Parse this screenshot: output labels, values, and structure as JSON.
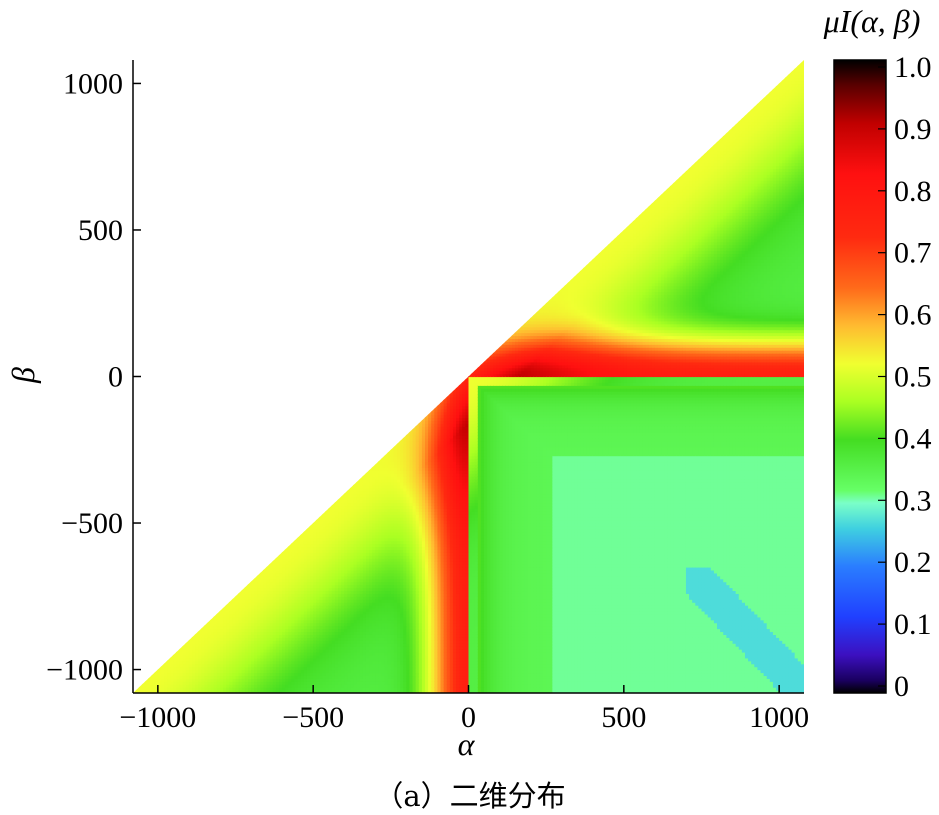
{
  "chart_data": {
    "type": "heatmap",
    "xlabel": "α",
    "ylabel": "β",
    "xlim": [
      -1080,
      1080
    ],
    "ylim": [
      -1080,
      1080
    ],
    "xticks": [
      -1000,
      -500,
      0,
      500,
      1000
    ],
    "yticks": [
      -1000,
      -500,
      0,
      500,
      1000
    ],
    "x_tick_labels": [
      "−1000",
      "−500",
      "0",
      "500",
      "1000"
    ],
    "y_tick_labels": [
      "−1000",
      "−500",
      "0",
      "500",
      "1000"
    ],
    "domain": "lower triangle β ≤ α",
    "colorbar": {
      "title": "μI(α, β)",
      "range": [
        0,
        1
      ],
      "ticks": [
        0,
        0.1,
        0.2,
        0.3,
        0.4,
        0.5,
        0.6,
        0.7,
        0.8,
        0.9,
        1.0
      ],
      "tick_labels": [
        "0",
        "0.1",
        "0.2",
        "0.3",
        "0.4",
        "0.5",
        "0.6",
        "0.7",
        "0.8",
        "0.9",
        "1.0"
      ],
      "colors": [
        [
          0.0,
          "#000000"
        ],
        [
          0.02,
          "#1a0060"
        ],
        [
          0.06,
          "#3c10c0"
        ],
        [
          0.12,
          "#2040ff"
        ],
        [
          0.2,
          "#2a7dff"
        ],
        [
          0.26,
          "#3fd0e0"
        ],
        [
          0.3,
          "#7affc8"
        ],
        [
          0.32,
          "#66ff66"
        ],
        [
          0.4,
          "#44dd22"
        ],
        [
          0.46,
          "#aaff22"
        ],
        [
          0.52,
          "#f0ff30"
        ],
        [
          0.58,
          "#ffbb30"
        ],
        [
          0.64,
          "#ff6a1a"
        ],
        [
          0.72,
          "#ff2a10"
        ],
        [
          0.82,
          "#ff1010"
        ],
        [
          0.9,
          "#c00000"
        ],
        [
          0.96,
          "#5a0000"
        ],
        [
          1.0,
          "#000000"
        ]
      ]
    },
    "regions": [
      {
        "name": "upper-diagonal-band",
        "mu": 0.38
      },
      {
        "name": "ridge-beta0-positive",
        "mu": 0.8
      },
      {
        "name": "ridge-alpha0-negative",
        "mu": 0.8
      },
      {
        "name": "interior-quadrant",
        "mu": 0.34
      },
      {
        "name": "interior-plateau",
        "mu": 0.31
      },
      {
        "name": "lower-right-streak",
        "mu": 0.28
      }
    ],
    "caption": "（a）二维分布"
  }
}
